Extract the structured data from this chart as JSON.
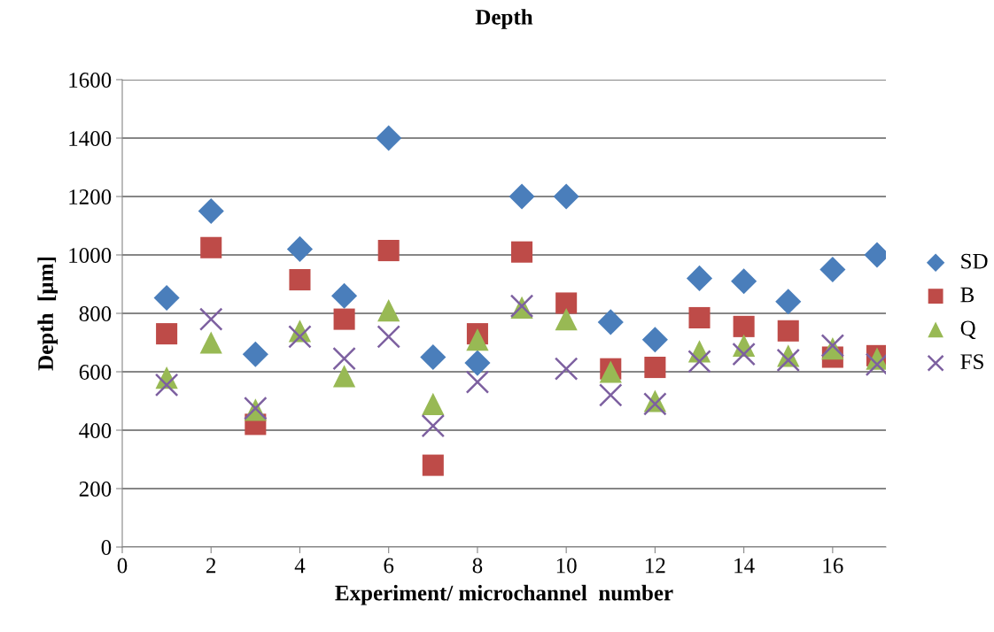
{
  "chart_data": {
    "type": "scatter",
    "title": "Depth",
    "xlabel": "Experiment/ microchannel  number",
    "ylabel": "Depth  [µm]",
    "x": [
      1,
      2,
      3,
      4,
      5,
      6,
      7,
      8,
      9,
      10,
      11,
      12,
      13,
      14,
      15,
      16,
      17
    ],
    "series": [
      {
        "name": "SD",
        "color": "#4a7ebb",
        "marker": "diamond",
        "values": [
          853,
          1150,
          660,
          1020,
          860,
          1400,
          650,
          630,
          1200,
          1200,
          770,
          710,
          920,
          910,
          840,
          950,
          1000
        ]
      },
      {
        "name": "B",
        "color": "#be4b48",
        "marker": "square",
        "values": [
          730,
          1025,
          420,
          915,
          780,
          1015,
          280,
          730,
          1010,
          835,
          610,
          615,
          785,
          755,
          740,
          650,
          655
        ]
      },
      {
        "name": "Q",
        "color": "#98b954",
        "marker": "triangle",
        "values": [
          580,
          700,
          470,
          740,
          585,
          810,
          490,
          710,
          820,
          780,
          600,
          500,
          670,
          690,
          655,
          680,
          645
        ]
      },
      {
        "name": "FS",
        "color": "#7d60a0",
        "marker": "cross",
        "values": [
          555,
          780,
          475,
          720,
          645,
          720,
          415,
          565,
          825,
          610,
          520,
          490,
          635,
          660,
          640,
          690,
          625
        ]
      }
    ],
    "xlim": [
      0,
      17.2
    ],
    "xticks": [
      0,
      2,
      4,
      6,
      8,
      10,
      12,
      14,
      16
    ],
    "ylim": [
      0,
      1600
    ],
    "yticks": [
      0,
      200,
      400,
      600,
      800,
      1000,
      1200,
      1400,
      1600
    ],
    "grid": "y",
    "legend": "right"
  }
}
